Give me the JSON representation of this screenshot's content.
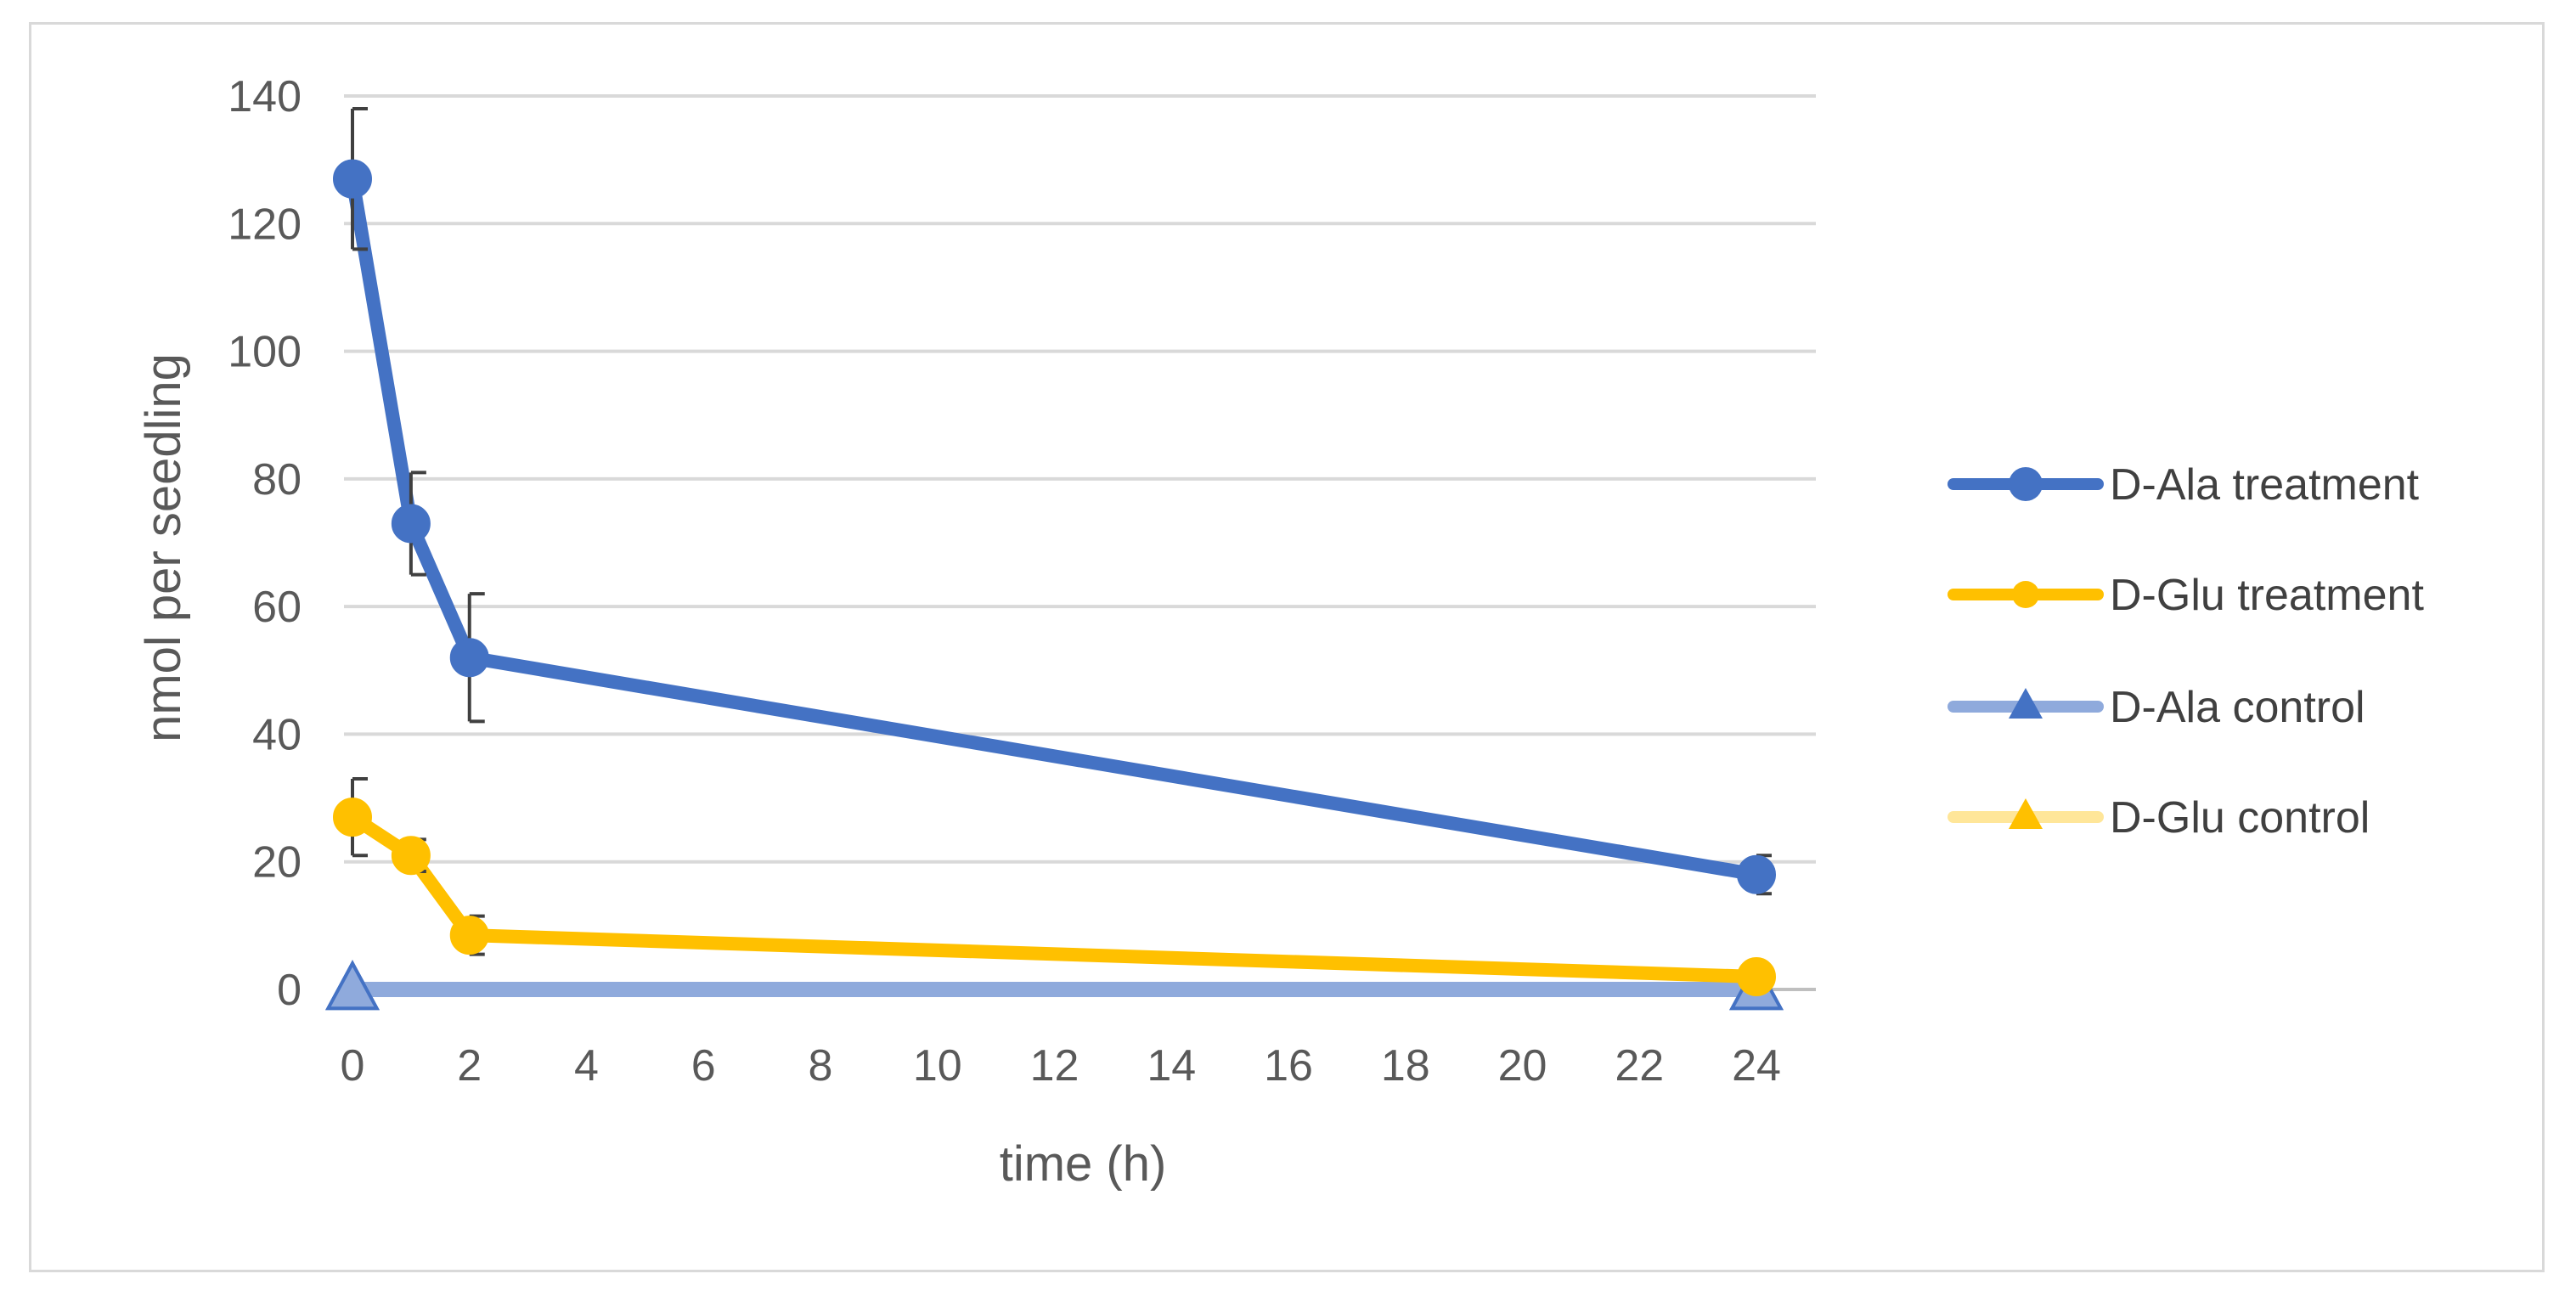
{
  "chart_data": {
    "type": "line",
    "title": "",
    "xlabel": "time (h)",
    "ylabel": "nmol per seedling",
    "xlim": [
      0,
      24
    ],
    "ylim": [
      0,
      140
    ],
    "x_ticks": [
      0,
      2,
      4,
      6,
      8,
      10,
      12,
      14,
      16,
      18,
      20,
      22,
      24
    ],
    "x_tick_labels": [
      "0",
      "2",
      "4",
      "6",
      "8",
      "10",
      "12",
      "14",
      "16",
      "18",
      "20",
      "22",
      "24"
    ],
    "y_ticks": [
      0,
      20,
      40,
      60,
      80,
      100,
      120,
      140
    ],
    "y_tick_labels": [
      "0",
      "20",
      "40",
      "60",
      "80",
      "100",
      "120",
      "140"
    ],
    "grid": "horizontal",
    "legend_position": "right",
    "series": [
      {
        "name": "D-Ala treatment",
        "color": "#4472c4",
        "marker": "circle",
        "x": [
          0,
          1,
          2,
          24
        ],
        "values": [
          127,
          73,
          52,
          18
        ],
        "error": [
          11,
          8,
          10,
          3
        ]
      },
      {
        "name": "D-Glu treatment",
        "color": "#ffc000",
        "marker": "circle",
        "x": [
          0,
          1,
          2,
          24
        ],
        "values": [
          27,
          21,
          8.5,
          2
        ],
        "error": [
          6,
          2.5,
          3,
          1
        ]
      },
      {
        "name": "D-Ala control",
        "color": "#8faadc",
        "marker": "triangle",
        "x": [
          0,
          24
        ],
        "values": [
          0,
          0
        ],
        "error": [
          0,
          0
        ]
      },
      {
        "name": "D-Glu control",
        "color": "#ffe699",
        "marker": "triangle",
        "x": [
          0,
          24
        ],
        "values": [
          0,
          0
        ],
        "error": [
          0,
          0
        ]
      }
    ]
  }
}
